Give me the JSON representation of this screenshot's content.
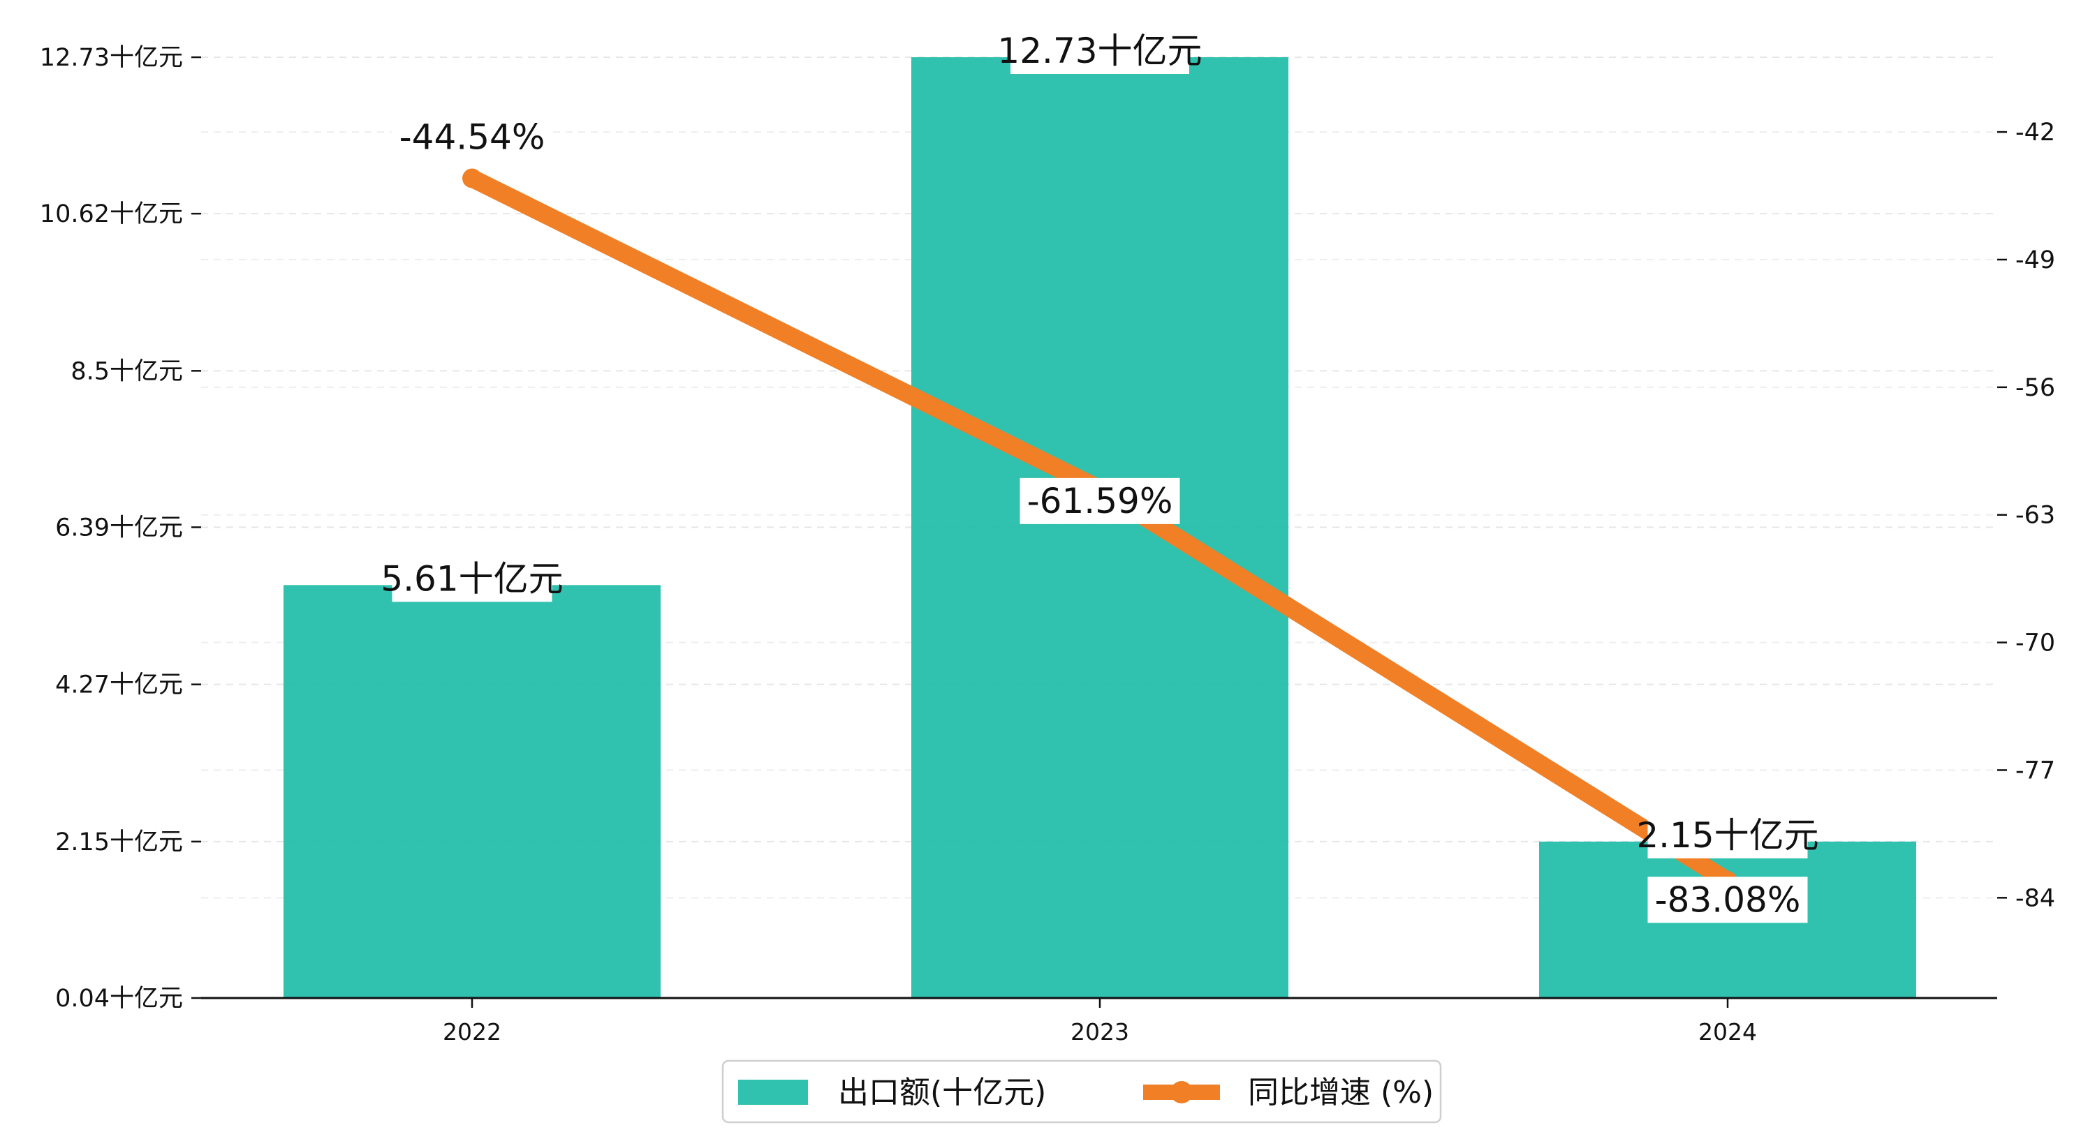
{
  "chart_data": {
    "type": "bar",
    "categories": [
      "2022",
      "2023",
      "2024"
    ],
    "series": [
      {
        "name": "出口额(十亿元)",
        "type": "bar",
        "axis": "left",
        "values": [
          5.61,
          12.73,
          2.15
        ],
        "labels": [
          "5.61十亿元",
          "12.73十亿元",
          "2.15十亿元"
        ],
        "color": "#1ABAA6"
      },
      {
        "name": "同比增速 (%)",
        "type": "line",
        "axis": "right",
        "values": [
          -44.54,
          -61.59,
          -83.08
        ],
        "labels": [
          "-44.54%",
          "-61.59%",
          "-83.08%"
        ],
        "color": "#F07F26"
      }
    ],
    "left_axis": {
      "ylim": [
        0.04,
        12.73
      ],
      "ticks": [
        0.04,
        2.15,
        4.27,
        6.39,
        8.5,
        10.62,
        12.73
      ],
      "tick_labels": [
        "0.04十亿元",
        "2.15十亿元",
        "4.27十亿元",
        "6.39十亿元",
        "8.5十亿元",
        "10.62十亿元",
        "12.73十亿元"
      ]
    },
    "right_axis": {
      "ylim": [
        -89.5,
        -37.9
      ],
      "ticks": [
        -84,
        -77,
        -70,
        -63,
        -56,
        -49,
        -42
      ],
      "tick_labels": [
        "-84",
        "-77",
        "-70",
        "-63",
        "-56",
        "-49",
        "-42"
      ]
    },
    "title": "",
    "xlabel": "",
    "ylabel": "",
    "grid": "horizontal-dashed",
    "legend_position": "bottom-center"
  }
}
